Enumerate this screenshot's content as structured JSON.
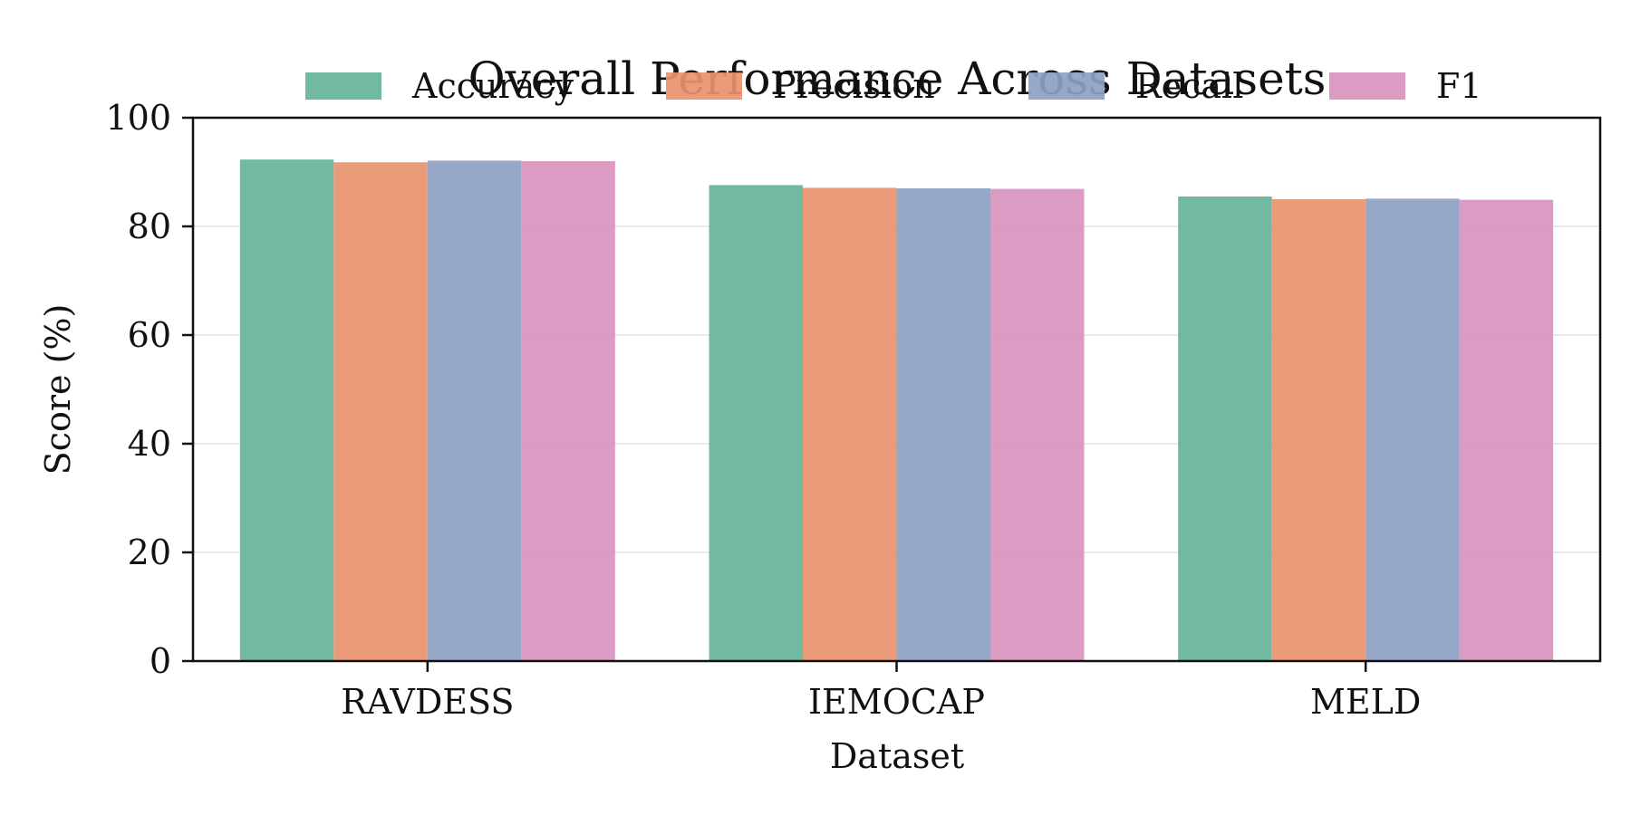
{
  "chart_data": {
    "type": "bar",
    "title": "Overall Performance Across Datasets",
    "xlabel": "Dataset",
    "ylabel": "Score (%)",
    "categories": [
      "RAVDESS",
      "IEMOCAP",
      "MELD"
    ],
    "series": [
      {
        "name": "Accuracy",
        "color": "#66b39c",
        "values": [
          92.3,
          87.6,
          85.5
        ]
      },
      {
        "name": "Precision",
        "color": "#e8926d",
        "values": [
          91.8,
          87.1,
          85.0
        ]
      },
      {
        "name": "Recall",
        "color": "#8e9fc3",
        "values": [
          92.1,
          87.0,
          85.1
        ]
      },
      {
        "name": "F1",
        "color": "#d892bd",
        "values": [
          92.0,
          86.9,
          84.9
        ]
      }
    ],
    "ylim": [
      0,
      100
    ],
    "yticks": [
      "0",
      "20",
      "40",
      "60",
      "80",
      "100"
    ],
    "grid": "horizontal",
    "legend_placement": "top-center"
  }
}
